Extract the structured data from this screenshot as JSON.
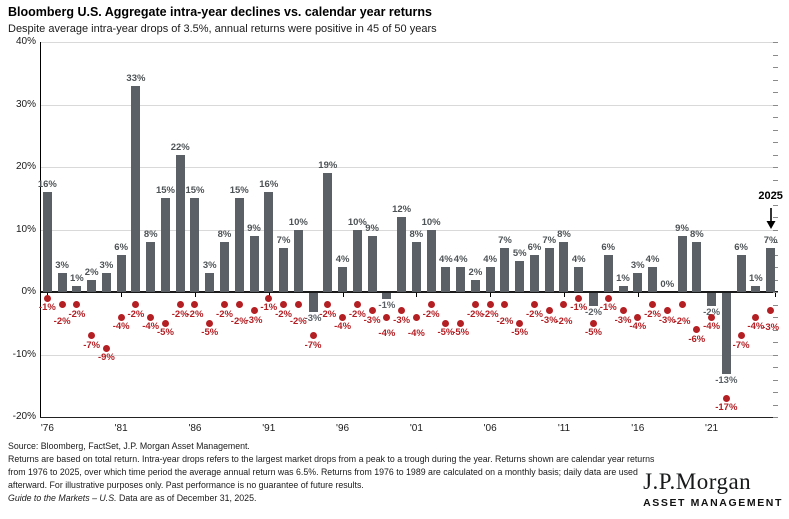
{
  "header": {
    "title": "Bloomberg U.S. Aggregate intra-year declines vs. calendar year returns",
    "subtitle": "Despite average intra-year drops of 3.5%, annual returns were positive in 45 of 50 years"
  },
  "chart_data": {
    "type": "bar",
    "title": "Bloomberg U.S. Aggregate intra-year declines vs. calendar year returns",
    "subtitle": "Despite average intra-year drops of 3.5%, annual returns were positive in 45 of 50 years",
    "years": [
      1976,
      1977,
      1978,
      1979,
      1980,
      1981,
      1982,
      1983,
      1984,
      1985,
      1986,
      1987,
      1988,
      1989,
      1990,
      1991,
      1992,
      1993,
      1994,
      1995,
      1996,
      1997,
      1998,
      1999,
      2000,
      2001,
      2002,
      2003,
      2004,
      2005,
      2006,
      2007,
      2008,
      2009,
      2010,
      2011,
      2012,
      2013,
      2014,
      2015,
      2016,
      2017,
      2018,
      2019,
      2020,
      2021,
      2022,
      2023,
      2024,
      2025
    ],
    "series": [
      {
        "name": "Calendar year return",
        "type": "bar",
        "values": [
          16,
          3,
          1,
          2,
          3,
          6,
          33,
          8,
          15,
          22,
          15,
          3,
          8,
          15,
          9,
          16,
          7,
          10,
          -3,
          19,
          4,
          10,
          9,
          -1,
          12,
          8,
          10,
          4,
          4,
          2,
          4,
          7,
          5,
          6,
          7,
          8,
          4,
          -2,
          6,
          1,
          3,
          4,
          0,
          9,
          8,
          -2,
          -13,
          6,
          1,
          7
        ]
      },
      {
        "name": "Intra-year decline",
        "type": "scatter",
        "values": [
          -1,
          -2,
          -2,
          -7,
          -9,
          -4,
          -2,
          -4,
          -5,
          -2,
          -2,
          -5,
          -2,
          -2,
          -3,
          -1,
          -2,
          -2,
          -7,
          -2,
          -4,
          -2,
          -3,
          -4,
          -3,
          -4,
          -2,
          -5,
          -5,
          -2,
          -2,
          -2,
          -5,
          -2,
          -3,
          -2,
          -1,
          -5,
          -1,
          -3,
          -4,
          -2,
          -3,
          -2,
          -6,
          -4,
          -17,
          -7,
          -4,
          -3
        ]
      }
    ],
    "ylim": [
      -20,
      40
    ],
    "y_ticks": [
      40,
      30,
      20,
      10,
      0,
      -10,
      -20
    ],
    "y_tick_labels": [
      "40%",
      "30%",
      "20%",
      "10%",
      "0%",
      "-10%",
      "-20%"
    ],
    "x_tick_years": [
      1976,
      1981,
      1986,
      1991,
      1996,
      2001,
      2006,
      2011,
      2016,
      2021
    ],
    "x_tick_labels": [
      "'76",
      "'81",
      "'86",
      "'91",
      "'96",
      "'01",
      "'06",
      "'11",
      "'16",
      "'21"
    ],
    "grid": "horizontal",
    "legend": "none",
    "annotation": {
      "label": "2025",
      "year": 2025
    },
    "colors": {
      "bar": "#5a6065",
      "dot": "#b41f24",
      "bar_label": "#4e5356",
      "grid": "#d9d9d9",
      "axis": "#000000"
    }
  },
  "footer": {
    "source": "Source: Bloomberg, FactSet, J.P. Morgan Asset Management.",
    "body": "Returns are based on total return. Intra-year drops refers to the largest market drops from a peak to a trough during the year. Returns shown are calendar year returns from 1976 to 2025, over which time period the average annual return was 6.5%. Returns from 1976 to 1989 are calculated on a monthly basis; daily data are used afterward. For illustrative purposes only. Past performance is no guarantee of future results.",
    "gtm_italic": "Guide to the Markets – U.S.",
    "gtm_rest": " Data are as of December 31, 2025."
  },
  "logo": {
    "main": "J.P.Morgan",
    "sub": "ASSET MANAGEMENT"
  }
}
